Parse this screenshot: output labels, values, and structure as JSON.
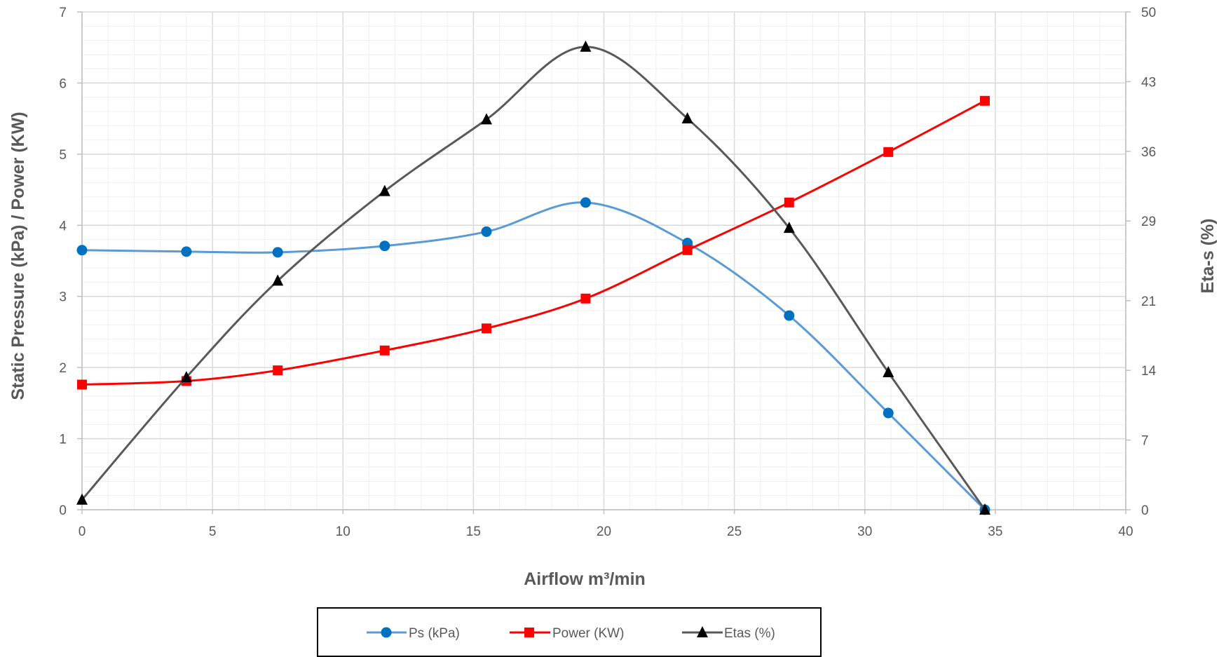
{
  "chart_data": {
    "type": "line",
    "title": "",
    "xlabel": "Airflow m³/min",
    "ylabel": "Static Pressure (kPa) / Power (KW)",
    "y2label": "Eta-s (%)",
    "xlim": [
      0,
      40
    ],
    "ylim": [
      0,
      7
    ],
    "y2lim": [
      0,
      50
    ],
    "x_ticks": [
      0,
      5,
      10,
      15,
      20,
      25,
      30,
      35,
      40
    ],
    "y_ticks": [
      0,
      1,
      2,
      3,
      4,
      5,
      6,
      7
    ],
    "y2_ticks": [
      0,
      7,
      14,
      21,
      29,
      36,
      43,
      50
    ],
    "grid": true,
    "legend_position": "bottom",
    "x": [
      0,
      4,
      7.5,
      11.6,
      15.5,
      19.3,
      23.2,
      27.1,
      30.9,
      34.6
    ],
    "series": [
      {
        "name": "Ps (kPa)",
        "axis": "left",
        "marker": "circle",
        "color": "#5B9BD5",
        "values": [
          3.65,
          3.63,
          3.62,
          3.71,
          3.91,
          4.32,
          3.75,
          2.73,
          1.36,
          0.0
        ]
      },
      {
        "name": "Power (KW)",
        "axis": "left",
        "marker": "square",
        "color": "#FF0000",
        "values": [
          1.76,
          1.81,
          1.96,
          2.24,
          2.55,
          2.97,
          3.65,
          4.32,
          5.03,
          5.75
        ]
      },
      {
        "name": "Etas (%)",
        "axis": "right",
        "marker": "triangle",
        "color": "#595959",
        "values": [
          1.0,
          13.3,
          23.0,
          32.0,
          39.2,
          46.5,
          39.3,
          28.3,
          13.8,
          0.0
        ]
      }
    ]
  }
}
